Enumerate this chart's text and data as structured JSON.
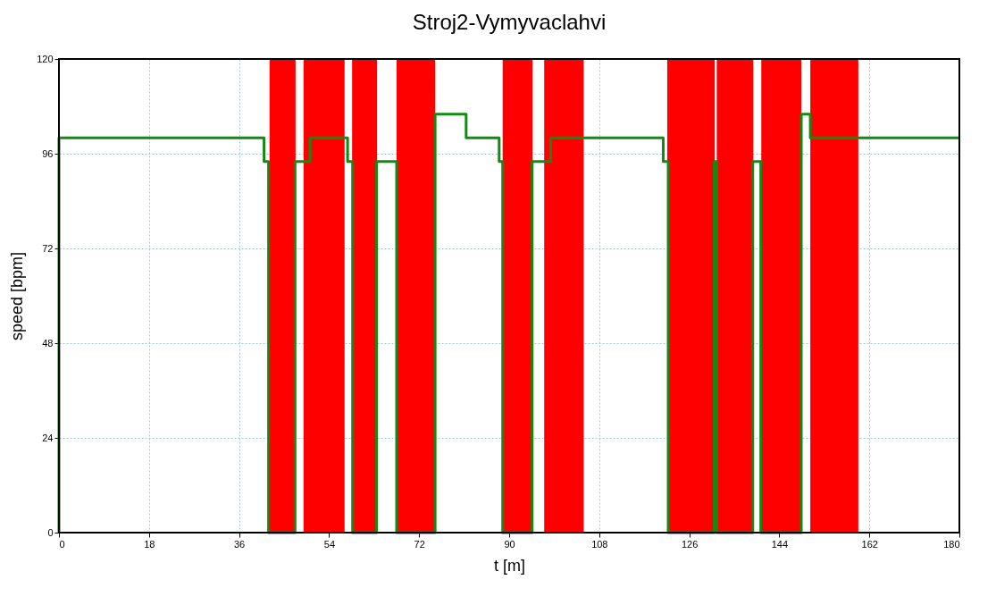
{
  "chart_data": {
    "type": "step",
    "title": "Stroj2-Vymyvaclahvi",
    "xlabel": "t [m]",
    "ylabel": "speed [bpm]",
    "x": [
      0,
      0,
      41,
      41.9,
      47.2,
      50.2,
      57.7,
      58.7,
      63.5,
      67.5,
      75.2,
      81.4,
      88,
      88.7,
      94.6,
      98.3,
      120.8,
      121.8,
      131,
      131.5,
      138.7,
      140.3,
      148.4,
      150.2,
      180
    ],
    "series": [
      {
        "color": "#138a13",
        "values": [
          0,
          100,
          94,
          0,
          94,
          100,
          94,
          0,
          94,
          0,
          106,
          100,
          94,
          0,
          94,
          100,
          94,
          0,
          94,
          0,
          94,
          0,
          106,
          100,
          100
        ]
      }
    ],
    "bands": [
      {
        "axis": "x",
        "from": 42.1,
        "to": 47.3,
        "color": "#ff0000"
      },
      {
        "axis": "x",
        "from": 48.9,
        "to": 57.1,
        "color": "#ff0000"
      },
      {
        "axis": "x",
        "from": 58.6,
        "to": 63.6,
        "color": "#ff0000"
      },
      {
        "axis": "x",
        "from": 67.5,
        "to": 75.2,
        "color": "#ff0000"
      },
      {
        "axis": "x",
        "from": 88.7,
        "to": 94.7,
        "color": "#ff0000"
      },
      {
        "axis": "x",
        "from": 97,
        "to": 104.9,
        "color": "#ff0000"
      },
      {
        "axis": "x",
        "from": 121.6,
        "to": 131.1,
        "color": "#ff0000"
      },
      {
        "axis": "x",
        "from": 131.5,
        "to": 138.8,
        "color": "#ff0000"
      },
      {
        "axis": "x",
        "from": 140.4,
        "to": 148.4,
        "color": "#ff0000"
      },
      {
        "axis": "x",
        "from": 150.2,
        "to": 159.8,
        "color": "#ff0000"
      }
    ],
    "xlim": [
      0,
      180
    ],
    "xticks": [
      0,
      18,
      36,
      54,
      72,
      90,
      108,
      126,
      144,
      162,
      180
    ],
    "ylim": [
      0,
      120
    ],
    "yticks": [
      0,
      24,
      48,
      72,
      96,
      120
    ],
    "grid": true,
    "marker": "none",
    "line_style": "solid"
  }
}
